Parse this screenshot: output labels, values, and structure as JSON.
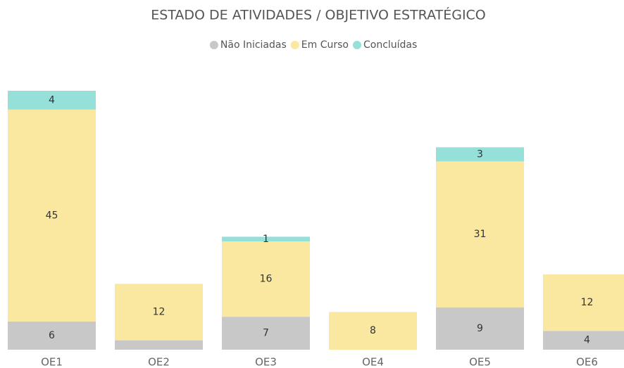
{
  "chart_data": {
    "type": "stacked_bar",
    "title": "ESTADO DE ATIVIDADES / OBJETIVO ESTRATÉGICO",
    "categories": [
      "OE1",
      "OE2",
      "OE3",
      "OE4",
      "OE5",
      "OE6"
    ],
    "series": [
      {
        "name": "Não Iniciadas",
        "color": "#c8c8c8",
        "values": [
          6,
          2,
          7,
          null,
          9,
          4
        ],
        "value_labels": [
          "6",
          null,
          "7",
          null,
          "9",
          "4"
        ]
      },
      {
        "name": "Em Curso",
        "color": "#fae7a0",
        "values": [
          45,
          12,
          16,
          8,
          31,
          12
        ]
      },
      {
        "name": "Concluídas",
        "color": "#96e0da",
        "values": [
          4,
          null,
          1,
          null,
          3,
          null
        ]
      }
    ],
    "ylim": [
      0,
      55
    ],
    "legend": "top"
  }
}
